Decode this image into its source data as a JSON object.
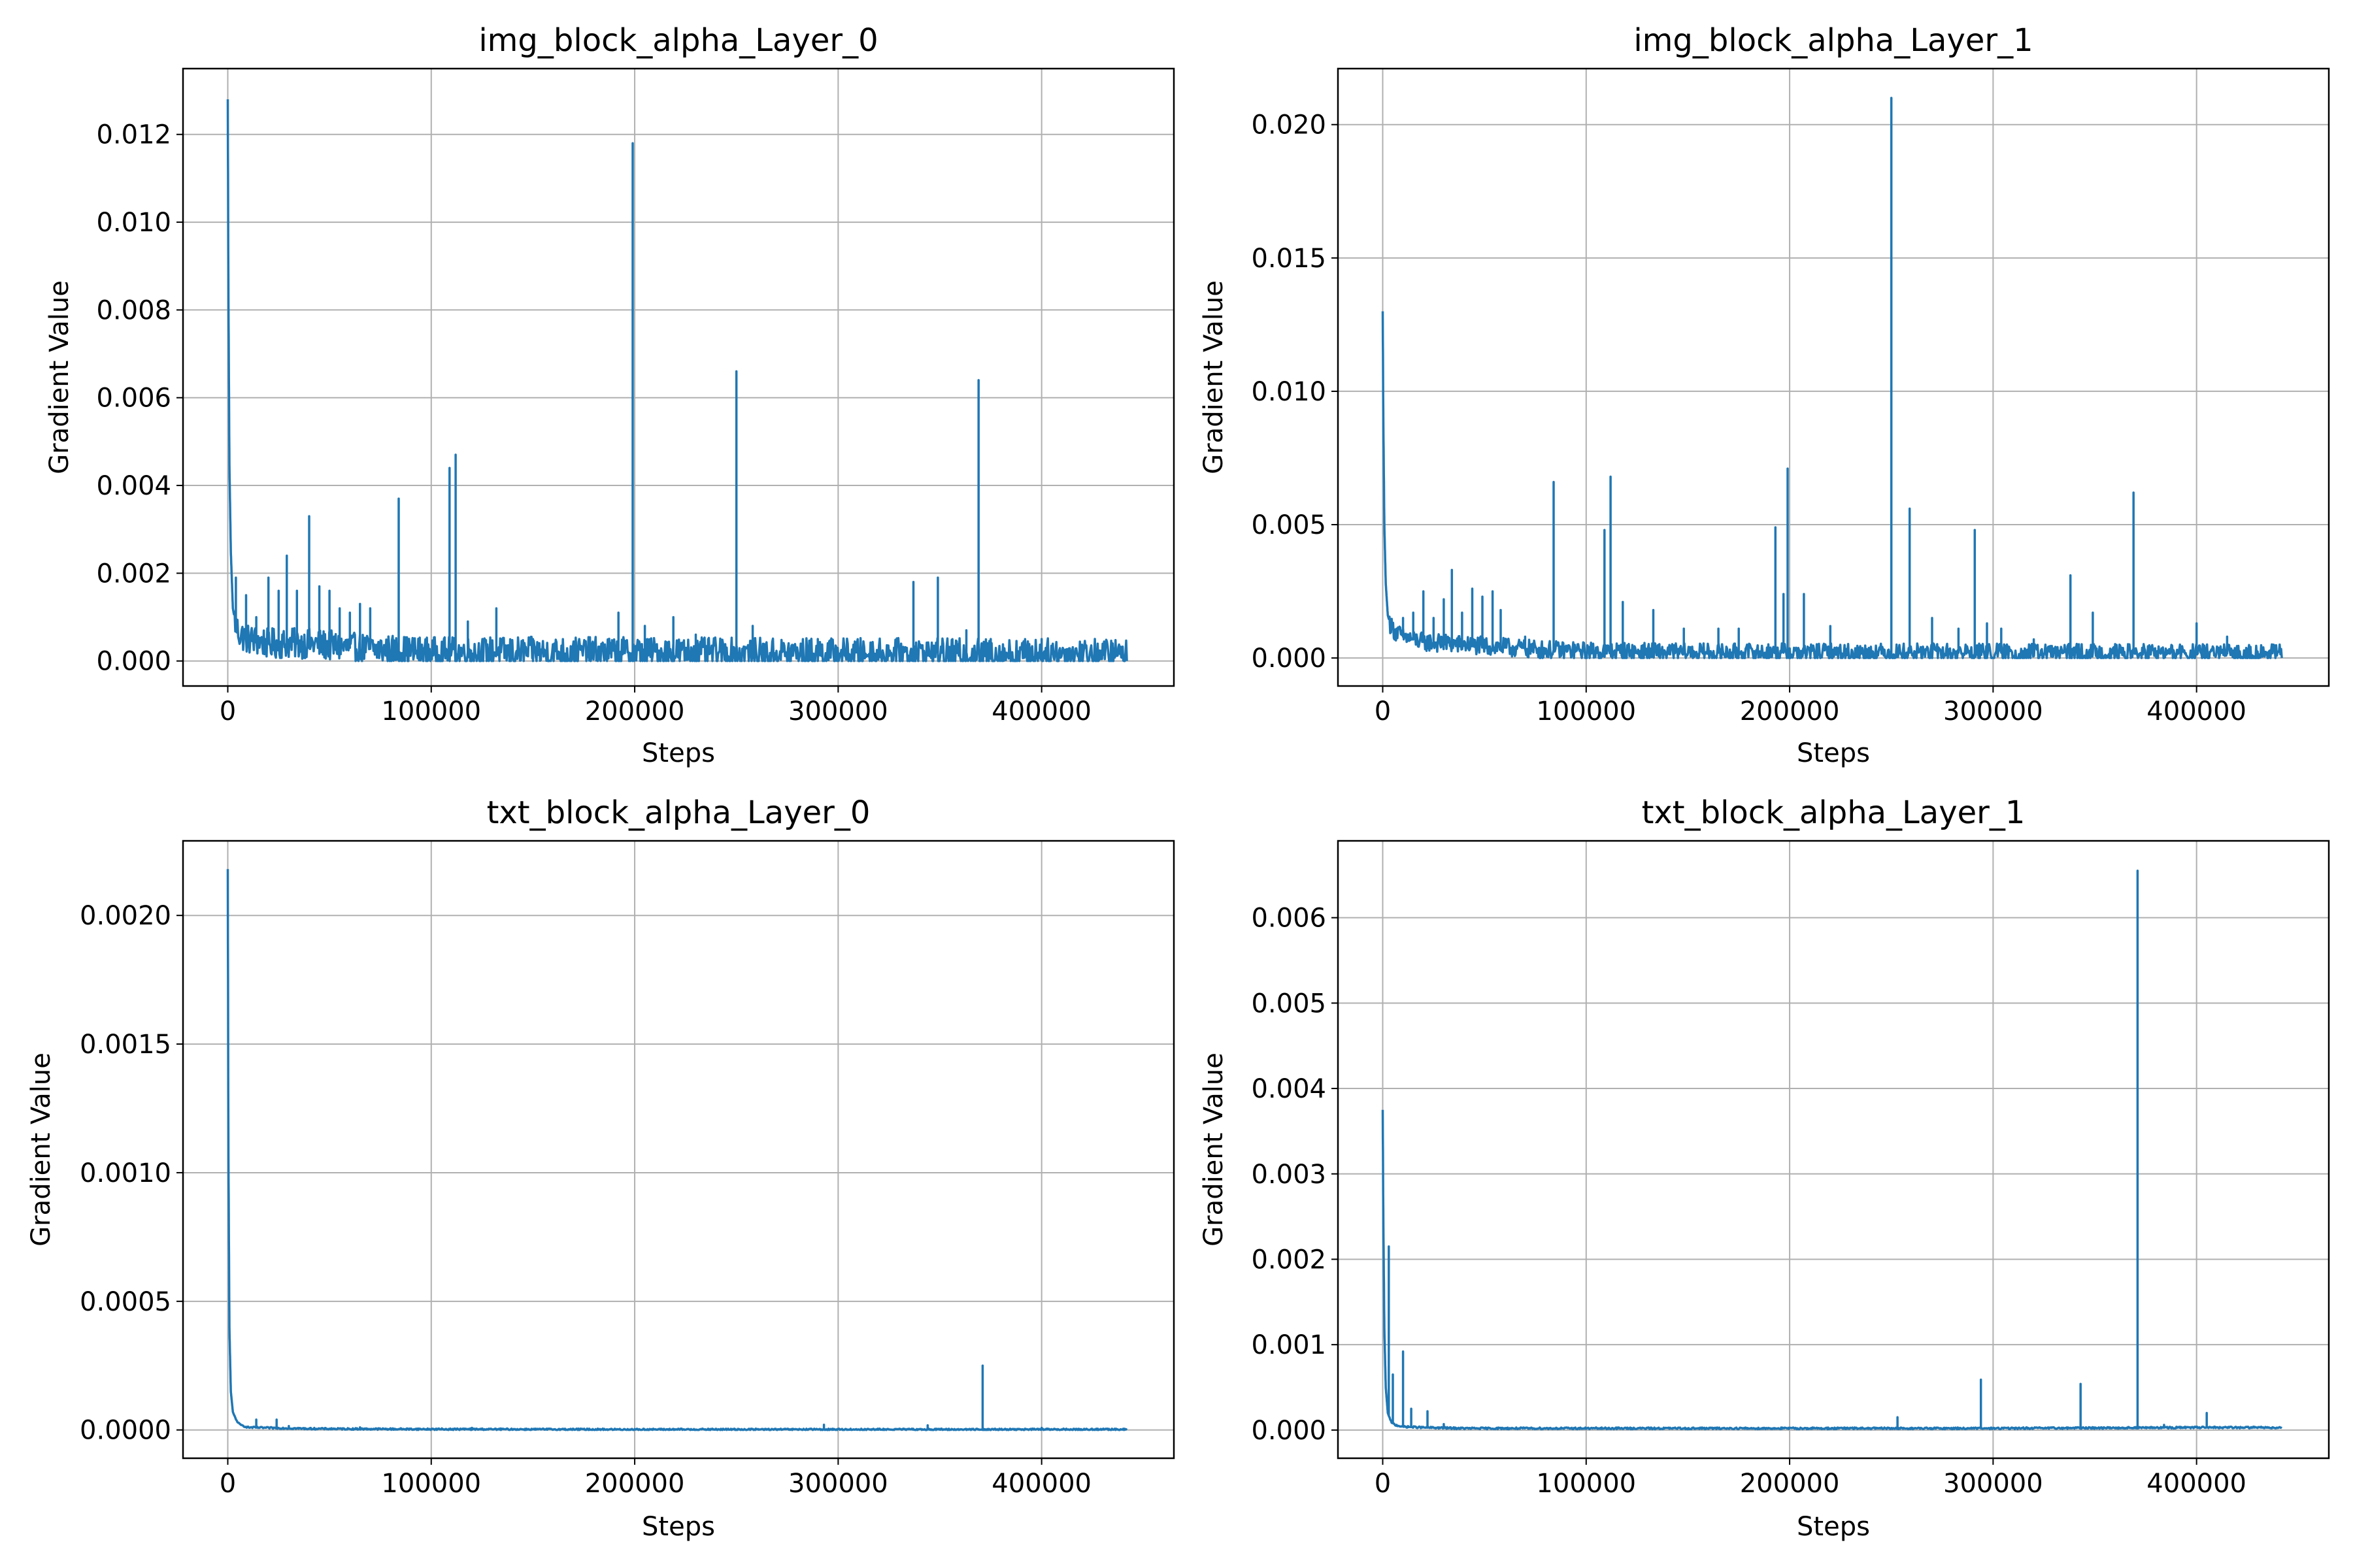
{
  "chart_data": [
    {
      "type": "line",
      "title": "img_block_alpha_Layer_0",
      "xlabel": "Steps",
      "ylabel": "Gradient Value",
      "xlim": [
        -22000,
        465000
      ],
      "ylim": [
        -0.00057,
        0.0135
      ],
      "xticks": [
        0,
        100000,
        200000,
        300000,
        400000
      ],
      "xtick_labels": [
        "0",
        "100000",
        "200000",
        "300000",
        "400000"
      ],
      "yticks": [
        0.0,
        0.002,
        0.004,
        0.006,
        0.008,
        0.01,
        0.012
      ],
      "ytick_labels": [
        "0.000",
        "0.002",
        "0.004",
        "0.006",
        "0.008",
        "0.010",
        "0.012"
      ],
      "grid": true,
      "color": "#1f77b4",
      "series": [
        {
          "x": [
            0,
            300,
            800,
            1500,
            2500,
            4000,
            6000,
            10000,
            20000,
            40000,
            60000,
            80000,
            100000,
            120000,
            150000,
            200000,
            250000,
            300000,
            350000,
            400000,
            442000
          ],
          "y": [
            0.0128,
            0.0085,
            0.0045,
            0.0025,
            0.0012,
            0.0008,
            0.0006,
            0.0005,
            0.0004,
            0.0004,
            0.0003,
            0.00025,
            0.0002,
            0.0002,
            0.0002,
            0.0002,
            0.00018,
            0.00018,
            0.00017,
            0.00017,
            0.00016
          ]
        }
      ],
      "noise_band": 0.0007,
      "spikes": [
        [
          4000,
          0.0019
        ],
        [
          9000,
          0.0015
        ],
        [
          14000,
          0.001
        ],
        [
          20000,
          0.0019
        ],
        [
          25000,
          0.0016
        ],
        [
          29000,
          0.0024
        ],
        [
          34000,
          0.0016
        ],
        [
          40000,
          0.0033
        ],
        [
          45000,
          0.0017
        ],
        [
          50000,
          0.0016
        ],
        [
          55000,
          0.0012
        ],
        [
          60000,
          0.0011
        ],
        [
          65000,
          0.0013
        ],
        [
          70000,
          0.0012
        ],
        [
          84000,
          0.0037
        ],
        [
          109000,
          0.0044
        ],
        [
          112000,
          0.0047
        ],
        [
          118000,
          0.0009
        ],
        [
          132000,
          0.0012
        ],
        [
          150000,
          0.0005
        ],
        [
          192000,
          0.0011
        ],
        [
          199000,
          0.0118
        ],
        [
          205000,
          0.0008
        ],
        [
          219000,
          0.001
        ],
        [
          230000,
          0.0006
        ],
        [
          250000,
          0.0066
        ],
        [
          258000,
          0.0008
        ],
        [
          290000,
          0.0005
        ],
        [
          337000,
          0.0018
        ],
        [
          349000,
          0.0019
        ],
        [
          363000,
          0.0007
        ],
        [
          369000,
          0.0064
        ],
        [
          375000,
          0.0005
        ],
        [
          400000,
          0.0005
        ]
      ]
    },
    {
      "type": "line",
      "title": "img_block_alpha_Layer_1",
      "xlabel": "Steps",
      "ylabel": "Gradient Value",
      "xlim": [
        -22000,
        465000
      ],
      "ylim": [
        -0.00105,
        0.0221
      ],
      "xticks": [
        0,
        100000,
        200000,
        300000,
        400000
      ],
      "xtick_labels": [
        "0",
        "100000",
        "200000",
        "300000",
        "400000"
      ],
      "yticks": [
        0.0,
        0.005,
        0.01,
        0.015,
        0.02
      ],
      "ytick_labels": [
        "0.000",
        "0.005",
        "0.010",
        "0.015",
        "0.020"
      ],
      "grid": true,
      "color": "#1f77b4",
      "series": [
        {
          "x": [
            0,
            300,
            800,
            1500,
            2500,
            4000,
            6000,
            10000,
            20000,
            40000,
            60000,
            80000,
            100000,
            150000,
            200000,
            250000,
            300000,
            350000,
            400000,
            442000
          ],
          "y": [
            0.013,
            0.009,
            0.005,
            0.0028,
            0.0016,
            0.0012,
            0.001,
            0.0008,
            0.0006,
            0.0005,
            0.0004,
            0.0003,
            0.00025,
            0.0002,
            0.0002,
            0.0002,
            0.0002,
            0.00018,
            0.00017,
            0.00016
          ]
        }
      ],
      "noise_band": 0.0007,
      "spikes": [
        [
          10000,
          0.0015
        ],
        [
          15000,
          0.0017
        ],
        [
          20000,
          0.0025
        ],
        [
          25000,
          0.0015
        ],
        [
          30000,
          0.0022
        ],
        [
          34000,
          0.0033
        ],
        [
          39000,
          0.0017
        ],
        [
          44000,
          0.0026
        ],
        [
          49000,
          0.0023
        ],
        [
          54000,
          0.0025
        ],
        [
          58000,
          0.0018
        ],
        [
          70000,
          0.0008
        ],
        [
          84000,
          0.0066
        ],
        [
          109000,
          0.0048
        ],
        [
          112000,
          0.0068
        ],
        [
          118000,
          0.0021
        ],
        [
          133000,
          0.0018
        ],
        [
          148000,
          0.0011
        ],
        [
          165000,
          0.0011
        ],
        [
          175000,
          0.0011
        ],
        [
          193000,
          0.0049
        ],
        [
          197000,
          0.0024
        ],
        [
          199000,
          0.0071
        ],
        [
          207000,
          0.0024
        ],
        [
          220000,
          0.0012
        ],
        [
          250000,
          0.021
        ],
        [
          259000,
          0.0056
        ],
        [
          270000,
          0.0015
        ],
        [
          283000,
          0.0011
        ],
        [
          291000,
          0.0048
        ],
        [
          297000,
          0.0013
        ],
        [
          304000,
          0.0011
        ],
        [
          320000,
          0.0007
        ],
        [
          338000,
          0.0031
        ],
        [
          349000,
          0.0017
        ],
        [
          369000,
          0.0062
        ],
        [
          400000,
          0.0013
        ],
        [
          415000,
          0.0008
        ]
      ]
    },
    {
      "type": "line",
      "title": "txt_block_alpha_Layer_0",
      "xlabel": "Steps",
      "ylabel": "Gradient Value",
      "xlim": [
        -22000,
        465000
      ],
      "ylim": [
        -0.00011,
        0.00229
      ],
      "xticks": [
        0,
        100000,
        200000,
        300000,
        400000
      ],
      "xtick_labels": [
        "0",
        "100000",
        "200000",
        "300000",
        "400000"
      ],
      "yticks": [
        0.0,
        0.0005,
        0.001,
        0.0015,
        0.002
      ],
      "ytick_labels": [
        "0.0000",
        "0.0005",
        "0.0010",
        "0.0015",
        "0.0020"
      ],
      "grid": true,
      "color": "#1f77b4",
      "series": [
        {
          "x": [
            0,
            300,
            800,
            1500,
            2500,
            4000,
            6000,
            10000,
            20000,
            40000,
            60000,
            100000,
            200000,
            300000,
            400000,
            442000
          ],
          "y": [
            0.00218,
            0.0011,
            0.0004,
            0.00015,
            7e-05,
            4e-05,
            2e-05,
            1e-05,
            8e-06,
            5e-06,
            4e-06,
            3e-06,
            2e-06,
            2e-06,
            2e-06,
            2e-06
          ]
        }
      ],
      "noise_band": 6e-06,
      "spikes": [
        [
          14000,
          4e-05
        ],
        [
          24000,
          4e-05
        ],
        [
          30000,
          1.5e-05
        ],
        [
          65000,
          1e-05
        ],
        [
          120000,
          8e-06
        ],
        [
          293000,
          2e-05
        ],
        [
          344000,
          1.8e-05
        ],
        [
          371000,
          0.00025
        ],
        [
          400000,
          8e-06
        ]
      ]
    },
    {
      "type": "line",
      "title": "txt_block_alpha_Layer_1",
      "xlabel": "Steps",
      "ylabel": "Gradient Value",
      "xlim": [
        -22000,
        465000
      ],
      "ylim": [
        -0.00033,
        0.0069
      ],
      "xticks": [
        0,
        100000,
        200000,
        300000,
        400000
      ],
      "xtick_labels": [
        "0",
        "100000",
        "200000",
        "300000",
        "400000"
      ],
      "yticks": [
        0.0,
        0.001,
        0.002,
        0.003,
        0.004,
        0.005,
        0.006
      ],
      "ytick_labels": [
        "0.000",
        "0.001",
        "0.002",
        "0.003",
        "0.004",
        "0.005",
        "0.006"
      ],
      "grid": true,
      "color": "#1f77b4",
      "series": [
        {
          "x": [
            0,
            300,
            800,
            1500,
            2500,
            4000,
            6000,
            10000,
            20000,
            40000,
            100000,
            200000,
            300000,
            400000,
            442000
          ],
          "y": [
            0.00375,
            0.0025,
            0.0012,
            0.0005,
            0.0002,
            0.0001,
            6e-05,
            4e-05,
            3e-05,
            2e-05,
            2e-05,
            2e-05,
            2e-05,
            3e-05,
            3e-05
          ]
        }
      ],
      "noise_band": 2e-05,
      "spikes": [
        [
          3000,
          0.00215
        ],
        [
          5000,
          0.00065
        ],
        [
          10000,
          0.00092
        ],
        [
          14000,
          0.00025
        ],
        [
          22000,
          0.00022
        ],
        [
          30000,
          7e-05
        ],
        [
          253000,
          0.00015
        ],
        [
          294000,
          0.00059
        ],
        [
          343000,
          0.00054
        ],
        [
          371000,
          0.00655
        ],
        [
          384000,
          6e-05
        ],
        [
          405000,
          0.0002
        ]
      ]
    }
  ]
}
